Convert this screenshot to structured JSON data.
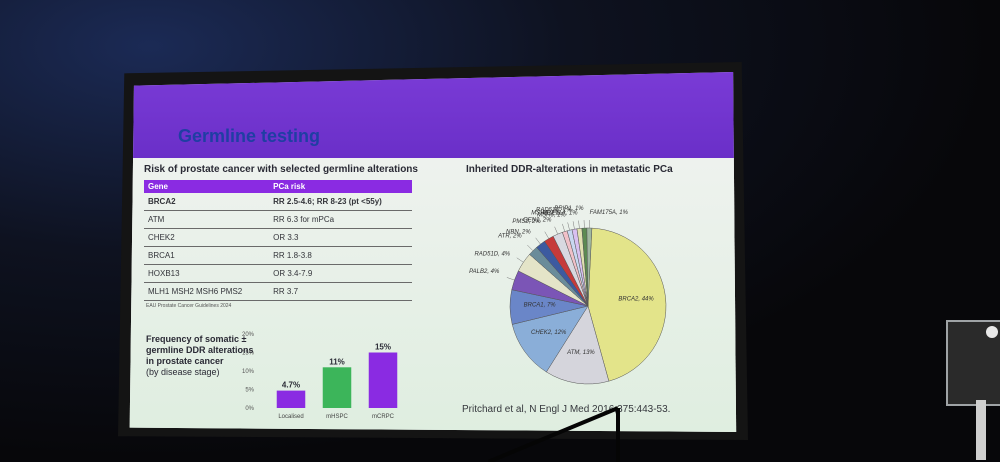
{
  "slide": {
    "title": "Germline testing",
    "table_title": "Risk of prostate cancer with selected germline alterations",
    "table_headers": [
      "Gene",
      "PCa risk"
    ],
    "table_rows": [
      {
        "gene": "BRCA2",
        "risk": "RR 2.5-4.6;     RR 8-23 (pt <55y)"
      },
      {
        "gene": "ATM",
        "risk": "RR 6.3 for mPCa"
      },
      {
        "gene": "CHEK2",
        "risk": "OR 3.3"
      },
      {
        "gene": "BRCA1",
        "risk": "RR 1.8-3.8"
      },
      {
        "gene": "HOXB13",
        "risk": "OR 3.4-7.9"
      },
      {
        "gene": "MLH1 MSH2 MSH6 PMS2",
        "risk": "RR 3.7"
      }
    ],
    "table_note": "EAU Prostate Cancer Guidelines 2024",
    "freq_title": "Frequency of somatic ± germline DDR alterations in prostate cancer",
    "freq_subtitle": "(by disease stage)",
    "pie_title": "Inherited DDR-alterations in metastatic PCa",
    "citation": "Pritchard et al, N Engl J Med 2016;375:443-53."
  },
  "colors": {
    "header_purple": "#6a2fc8",
    "title_blue": "#1f3ea3",
    "bar_localised": "#8a2be2",
    "bar_mhspc": "#3cb55a",
    "bar_mcrpc": "#8a2be2"
  },
  "chart_data": [
    {
      "type": "bar",
      "categories": [
        "Localised",
        "mHSPC",
        "mCRPC"
      ],
      "values": [
        4.7,
        11,
        15
      ],
      "data_labels": [
        "4.7%",
        "11%",
        "15%"
      ],
      "ylim": [
        0,
        20
      ],
      "yticks": [
        "0%",
        "5%",
        "10%",
        "15%",
        "20%"
      ],
      "colors": [
        "#8a2be2",
        "#3cb55a",
        "#8a2be2"
      ]
    },
    {
      "type": "pie",
      "labels": [
        "BRCA2, 44%",
        "ATM, 13%",
        "CHEK2, 12%",
        "BRCA1, 7%",
        "PALB2, 4%",
        "RAD51D, 4%",
        "ATR, 2%",
        "NBN, 2%",
        "PMS2, 2%",
        "GEN1, 2%",
        "MSH2, 1%",
        "MSH6, 1%",
        "RAD51C, 1%",
        "MRE11A, 1%",
        "BRIP1, 1%",
        "FAM175A, 1%"
      ],
      "values": [
        44,
        13,
        12,
        7,
        4,
        4,
        2,
        2,
        2,
        2,
        1,
        1,
        1,
        1,
        1,
        1
      ],
      "colors": [
        "#e3e48a",
        "#d5d5dc",
        "#8aaed8",
        "#6a86c8",
        "#7b55b6",
        "#e4e4c8",
        "#6a8c9a",
        "#3c5aa0",
        "#c63a3a",
        "#d8d8e0",
        "#f0c0c8",
        "#c8d8f0",
        "#d8c0f0",
        "#e0e0b0",
        "#5c8a52",
        "#a0b8a0"
      ]
    }
  ]
}
